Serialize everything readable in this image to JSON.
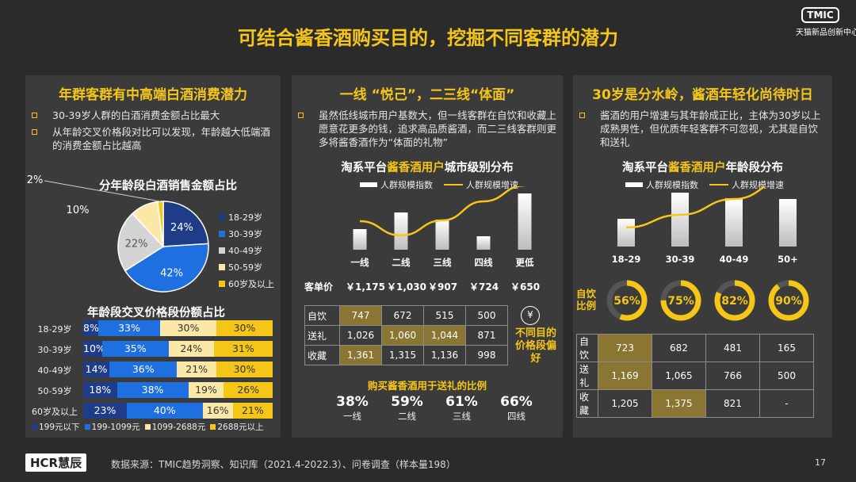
{
  "slide_title": "可结合酱香酒购买目的，挖掘不同客群的潜力",
  "brand": {
    "logo": "TMIC",
    "subtitle": "天猫新品创新中心"
  },
  "panel1": {
    "title": "年群客群有中高端白酒消费潜力",
    "bullets": [
      "30-39岁人群的白酒消费金额占比最大",
      "从年龄交叉价格段对比可以发现，年龄越大低端酒的消费金额占比越高"
    ],
    "pie_title": "分年龄段白酒销售金额占比",
    "bar_title": "年龄段交叉价格段份额占比"
  },
  "panel2": {
    "title": "一线 “悦己”，二三线“体面”",
    "bullets": [
      "虽然低线城市用户基数大，但一线客群在自饮和收藏上愿意花更多的钱，追求高品质酱酒，而二三线客群则更多将酱香酒作为“体面的礼物”"
    ],
    "chart_title_a": "淘系平台",
    "chart_title_b": "酱香酒用户",
    "chart_title_c": "城市级别分布",
    "legend_bar": "人群规模指数",
    "legend_line": "人群规模增速",
    "price_label": "客单价",
    "side_note": "不同目的价格段偏好",
    "yen_icon": "¥",
    "gift_title": "购买酱香酒用于送礼的比例"
  },
  "panel3": {
    "title": "30岁是分水岭，酱酒年轻化尚待时日",
    "bullets": [
      "酱酒的用户增速与其年龄成正比，主体为30岁以上成熟男性，但优质年轻客群不可忽视，尤其是自饮和送礼"
    ],
    "chart_title_a": "淘系平台",
    "chart_title_b": "酱香酒用户",
    "chart_title_c": "年龄段分布",
    "legend_bar": "人群规模指数",
    "legend_line": "人群规模增速",
    "ring_label": "自饮比例"
  },
  "footer": {
    "logo": "HCR慧辰",
    "source": "数据来源：TMIC趋势洞察、知识库（2021.4-2022.3）、问卷调查（样本量198）",
    "page": "17"
  },
  "chart_data": [
    {
      "type": "pie",
      "title": "分年龄段白酒销售金额占比",
      "categories": [
        "18-29岁",
        "30-39岁",
        "40-49岁",
        "50-59岁",
        "60岁及以上"
      ],
      "values": [
        24,
        42,
        22,
        10,
        2
      ],
      "labels": [
        "24%",
        "42%",
        "22%",
        "10%",
        "2%"
      ],
      "colors": [
        "#1f3c88",
        "#1e6fe0",
        "#d4d4d4",
        "#fbe8a6",
        "#f5c518"
      ],
      "legend": "right"
    },
    {
      "type": "bar",
      "title": "年龄段交叉价格段份额占比",
      "stacked": true,
      "orientation": "horizontal",
      "categories": [
        "18-29岁",
        "30-39岁",
        "40-49岁",
        "50-59岁",
        "60岁及以上"
      ],
      "series": [
        {
          "name": "199元以下",
          "color": "#1f3c88",
          "values": [
            8,
            10,
            14,
            18,
            23
          ]
        },
        {
          "name": "199-1099元",
          "color": "#1e6fe0",
          "values": [
            33,
            35,
            36,
            38,
            40
          ]
        },
        {
          "name": "1099-2688元",
          "color": "#fbe8a6",
          "values": [
            30,
            24,
            21,
            19,
            16
          ]
        },
        {
          "name": "2688元以上",
          "color": "#f5c518",
          "values": [
            30,
            31,
            30,
            26,
            21
          ]
        }
      ],
      "legend": "bottom"
    },
    {
      "type": "bar",
      "title": "淘系平台酱香酒用户城市级别分布",
      "categories": [
        "一线",
        "二线",
        "三线",
        "四线",
        "更低"
      ],
      "series": [
        {
          "name": "人群规模指数",
          "values": [
            26,
            47,
            38,
            17,
            71
          ]
        },
        {
          "name": "人群规模增速",
          "type": "line",
          "values": [
            36,
            18,
            37,
            61,
            81
          ]
        }
      ],
      "price": [
        "￥1,175",
        "￥1,030",
        "￥907",
        "￥724",
        "￥650"
      ],
      "table": {
        "rows": [
          "自饮",
          "送礼",
          "收藏"
        ],
        "values": [
          [
            "747",
            "672",
            "515",
            "500"
          ],
          [
            "1,026",
            "1,060",
            "1,044",
            "871"
          ],
          [
            "1,361",
            "1,315",
            "1,136",
            "998"
          ]
        ],
        "highlight": [
          [
            true,
            false,
            false,
            false
          ],
          [
            false,
            true,
            true,
            false
          ],
          [
            true,
            false,
            false,
            false
          ]
        ]
      },
      "gift_ratio": {
        "categories": [
          "一线",
          "二线",
          "三线",
          "四线"
        ],
        "values": [
          "38%",
          "59%",
          "61%",
          "66%"
        ]
      },
      "legend": "top"
    },
    {
      "type": "bar",
      "title": "淘系平台酱香酒用户年龄段分布",
      "categories": [
        "18-29",
        "30-39",
        "40-49",
        "50+"
      ],
      "series": [
        {
          "name": "人群规模指数",
          "values": [
            35,
            68,
            61,
            60
          ]
        },
        {
          "name": "人群规模增速",
          "type": "line",
          "values": [
            24,
            40,
            60,
            85
          ]
        }
      ],
      "self_drink_ratio": {
        "values": [
          56,
          75,
          82,
          90
        ],
        "labels": [
          "56%",
          "75%",
          "82%",
          "90%"
        ]
      },
      "table": {
        "rows": [
          "自饮",
          "送礼",
          "收藏"
        ],
        "values": [
          [
            "723",
            "682",
            "481",
            "165"
          ],
          [
            "1,169",
            "1,065",
            "766",
            "500"
          ],
          [
            "1,205",
            "1,375",
            "821",
            "-"
          ]
        ],
        "highlight": [
          [
            true,
            false,
            false,
            false
          ],
          [
            true,
            false,
            false,
            false
          ],
          [
            false,
            true,
            false,
            false
          ]
        ]
      },
      "legend": "top"
    }
  ]
}
